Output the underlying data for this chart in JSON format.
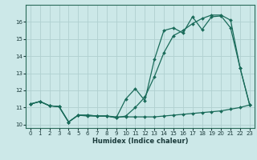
{
  "xlabel": "Humidex (Indice chaleur)",
  "background_color": "#cce8e8",
  "grid_color": "#b0d0d0",
  "line_color": "#1a6b5a",
  "xlim": [
    -0.5,
    23.5
  ],
  "ylim": [
    9.8,
    17.0
  ],
  "yticks": [
    10,
    11,
    12,
    13,
    14,
    15,
    16
  ],
  "xticks": [
    0,
    1,
    2,
    3,
    4,
    5,
    6,
    7,
    8,
    9,
    10,
    11,
    12,
    13,
    14,
    15,
    16,
    17,
    18,
    19,
    20,
    21,
    22,
    23
  ],
  "series1_x": [
    0,
    1,
    2,
    3,
    4,
    5,
    6,
    7,
    8,
    9,
    10,
    11,
    12,
    13,
    14,
    15,
    16,
    17,
    18,
    19,
    20,
    21,
    22,
    23
  ],
  "series1_y": [
    11.2,
    11.35,
    11.1,
    11.05,
    10.15,
    10.55,
    10.5,
    10.5,
    10.5,
    10.45,
    10.45,
    10.45,
    10.45,
    10.45,
    10.5,
    10.55,
    10.6,
    10.65,
    10.7,
    10.75,
    10.8,
    10.9,
    11.0,
    11.15
  ],
  "series2_x": [
    0,
    1,
    2,
    3,
    4,
    5,
    6,
    7,
    8,
    9,
    10,
    11,
    12,
    13,
    14,
    15,
    16,
    17,
    18,
    19,
    20,
    21,
    22,
    23
  ],
  "series2_y": [
    11.2,
    11.35,
    11.1,
    11.05,
    10.15,
    10.55,
    10.55,
    10.5,
    10.5,
    10.4,
    11.5,
    12.1,
    11.4,
    13.8,
    15.5,
    15.65,
    15.35,
    16.3,
    15.55,
    16.3,
    16.35,
    15.65,
    13.3,
    11.15
  ],
  "series3_x": [
    0,
    1,
    2,
    3,
    4,
    5,
    6,
    7,
    8,
    9,
    10,
    11,
    12,
    13,
    14,
    15,
    16,
    17,
    18,
    19,
    20,
    21,
    22,
    23
  ],
  "series3_y": [
    11.2,
    11.35,
    11.1,
    11.05,
    10.15,
    10.55,
    10.55,
    10.5,
    10.5,
    10.4,
    10.5,
    11.0,
    11.6,
    12.8,
    14.2,
    15.2,
    15.5,
    15.9,
    16.2,
    16.4,
    16.4,
    16.1,
    13.3,
    11.15
  ],
  "title_fontsize": 6,
  "tick_fontsize": 5,
  "xlabel_fontsize": 6,
  "linewidth": 0.9,
  "markersize": 2
}
